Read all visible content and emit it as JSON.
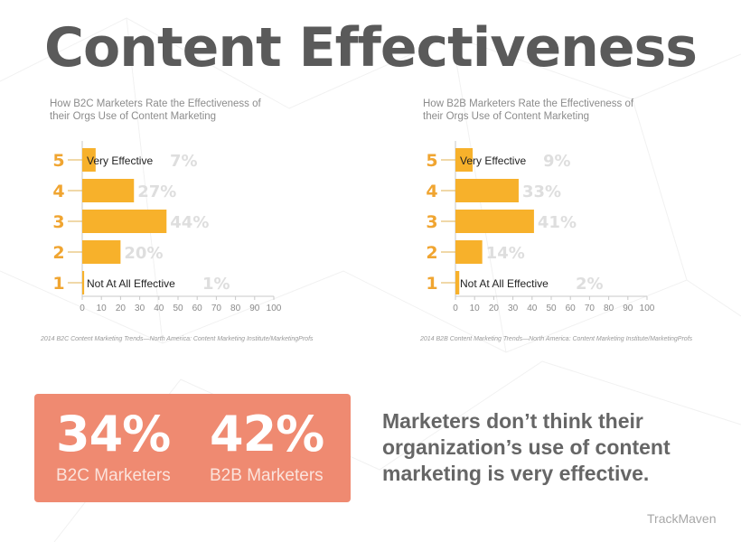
{
  "title": "Content Effectiveness",
  "chart_data": [
    {
      "type": "bar",
      "orientation": "horizontal",
      "subtitle": "How B2C Marketers Rate the Effectiveness of their Orgs Use of Content Marketing",
      "categories": [
        "5",
        "4",
        "3",
        "2",
        "1"
      ],
      "values": [
        7,
        27,
        44,
        20,
        1
      ],
      "value_labels": [
        "7%",
        "27%",
        "44%",
        "20%",
        "1%"
      ],
      "annotations": {
        "5": "Very Effective",
        "1": "Not At All Effective"
      },
      "xlim": [
        0,
        100
      ],
      "xticks": [
        0,
        10,
        20,
        30,
        40,
        50,
        60,
        70,
        80,
        90,
        100
      ],
      "grid": false,
      "bar_color": "#f7b12b",
      "category_color": "#f0a531"
    },
    {
      "type": "bar",
      "orientation": "horizontal",
      "subtitle": "How B2B Marketers Rate the Effectiveness of their Orgs Use of Content Marketing",
      "categories": [
        "5",
        "4",
        "3",
        "2",
        "1"
      ],
      "values": [
        9,
        33,
        41,
        14,
        2
      ],
      "value_labels": [
        "9%",
        "33%",
        "41%",
        "14%",
        "2%"
      ],
      "annotations": {
        "5": "Very Effective",
        "1": "Not At All Effective"
      },
      "xlim": [
        0,
        100
      ],
      "xticks": [
        0,
        10,
        20,
        30,
        40,
        50,
        60,
        70,
        80,
        90,
        100
      ],
      "grid": false,
      "bar_color": "#f7b12b",
      "category_color": "#f0a531"
    }
  ],
  "sources": {
    "b2c": "2014 B2C Content Marketing Trends—North America: Content Marketing Institute/MarketingProfs",
    "b2b": "2014 B2B Content Marketing Trends—North America: Content Marketing Institute/MarketingProfs"
  },
  "stats": {
    "b2c": {
      "value": "34%",
      "label": "B2C Marketers"
    },
    "b2b": {
      "value": "42%",
      "label": "B2B Marketers"
    },
    "box_color": "#ef8a71"
  },
  "tagline": "Marketers don’t think their organization’s use of content marketing is very effective.",
  "brand": "TrackMaven"
}
